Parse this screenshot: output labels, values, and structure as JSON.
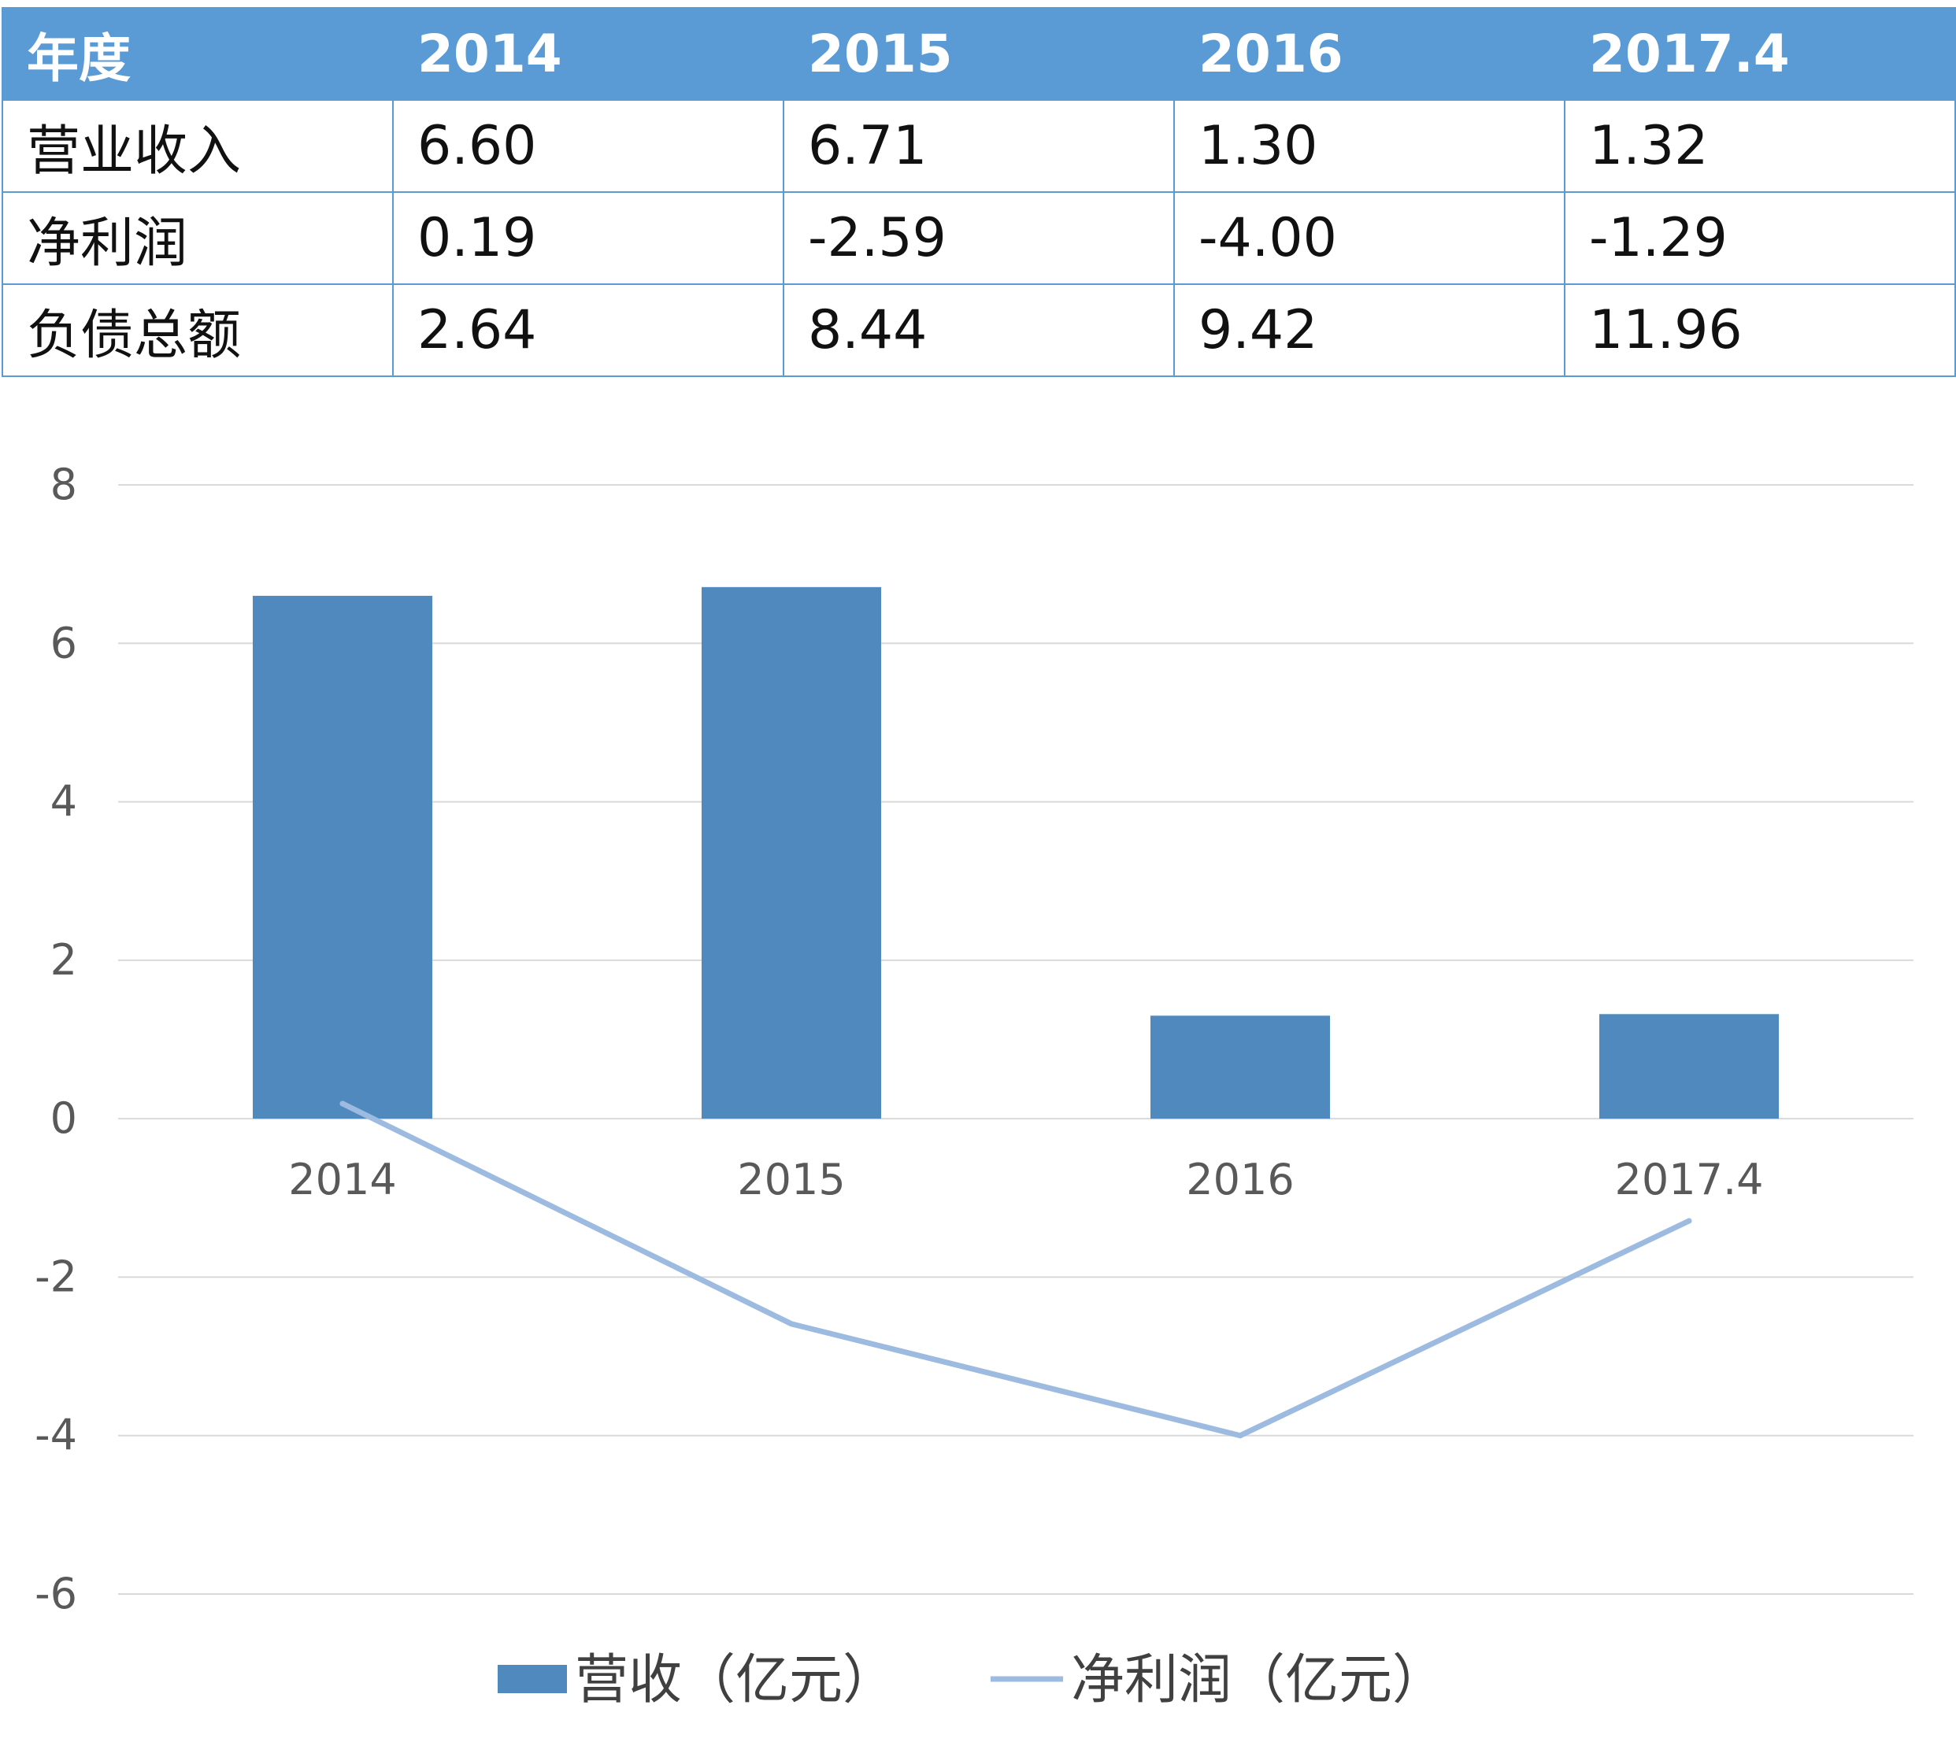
{
  "table": {
    "header": [
      "年度",
      "2014",
      "2015",
      "2016",
      "2017.4"
    ],
    "rows": [
      [
        "营业收入",
        "6.60",
        "6.71",
        "1.30",
        "1.32"
      ],
      [
        "净利润",
        "0.19",
        "-2.59",
        "-4.00",
        "-1.29"
      ],
      [
        "负债总额",
        "2.64",
        "8.44",
        "9.42",
        "11.96"
      ]
    ]
  },
  "chart_data": {
    "type": "bar",
    "categories": [
      "2014",
      "2015",
      "2016",
      "2017.4"
    ],
    "series": [
      {
        "name": "营收（亿元）",
        "type": "bar",
        "color": "#4f89bd",
        "values": [
          6.6,
          6.71,
          1.3,
          1.32
        ]
      },
      {
        "name": "净利润（亿元）",
        "type": "line",
        "color": "#9dbbe0",
        "values": [
          0.19,
          -2.59,
          -4.0,
          -1.29
        ]
      }
    ],
    "ylim": [
      -6,
      8
    ],
    "yticks": [
      "8",
      "6",
      "4",
      "2",
      "0",
      "-2",
      "-4",
      "-6"
    ],
    "grid": true,
    "legend": "bottom",
    "colors": {
      "gridline": "#d9d9d9",
      "tick_text": "#595959"
    }
  }
}
